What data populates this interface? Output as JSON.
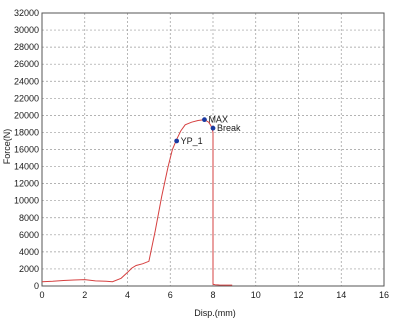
{
  "chart_data": {
    "type": "line",
    "title": "",
    "xlabel": "Disp.(mm)",
    "ylabel": "Force(N)",
    "xlim": [
      0,
      16
    ],
    "ylim": [
      0,
      32000
    ],
    "x_ticks": [
      0,
      2,
      4,
      6,
      8,
      10,
      12,
      14,
      16
    ],
    "y_ticks": [
      0,
      2000,
      4000,
      6000,
      8000,
      10000,
      12000,
      14000,
      16000,
      18000,
      20000,
      22000,
      24000,
      26000,
      28000,
      30000,
      32000
    ],
    "grid": true,
    "line_color": "#d64040",
    "series": [
      {
        "x": [
          0.0,
          0.5,
          1.0,
          1.5,
          2.0,
          2.5,
          3.0,
          3.3,
          3.7,
          4.0,
          4.2,
          4.4,
          4.7,
          5.0,
          5.3,
          5.6,
          5.9,
          6.1,
          6.3,
          6.5,
          6.7,
          7.0,
          7.3,
          7.6,
          7.8,
          7.9,
          7.95,
          8.0,
          8.0,
          8.1,
          8.3,
          8.6,
          8.9
        ],
        "y": [
          500,
          550,
          650,
          700,
          750,
          600,
          550,
          500,
          900,
          1600,
          2100,
          2400,
          2600,
          2900,
          6500,
          10500,
          14000,
          16000,
          17200,
          18200,
          18900,
          19200,
          19400,
          19500,
          19200,
          18800,
          18500,
          18000,
          200,
          150,
          120,
          100,
          100
        ]
      }
    ],
    "annotations": [
      {
        "label": "YP_1",
        "x": 6.3,
        "y": 17000
      },
      {
        "label": "MAX",
        "x": 7.6,
        "y": 19500
      },
      {
        "label": "Break",
        "x": 8.0,
        "y": 18500
      }
    ],
    "marker_color": "#1a3aa0"
  }
}
